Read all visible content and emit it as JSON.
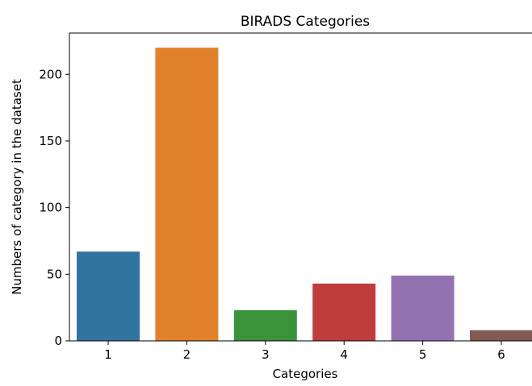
{
  "chart_data": {
    "type": "bar",
    "title": "BIRADS Categories",
    "xlabel": "Categories",
    "ylabel": "Numbers of category in the dataset",
    "categories": [
      "1",
      "2",
      "3",
      "4",
      "5",
      "6"
    ],
    "values": [
      67,
      220,
      23,
      43,
      49,
      8
    ],
    "colors": [
      "#3274a1",
      "#e1812c",
      "#3a923a",
      "#c03d3e",
      "#9372b2",
      "#845b53"
    ],
    "yticks": [
      "0",
      "50",
      "100",
      "150",
      "200"
    ],
    "ylim": [
      0,
      231
    ],
    "grid": false,
    "legend": "none"
  }
}
